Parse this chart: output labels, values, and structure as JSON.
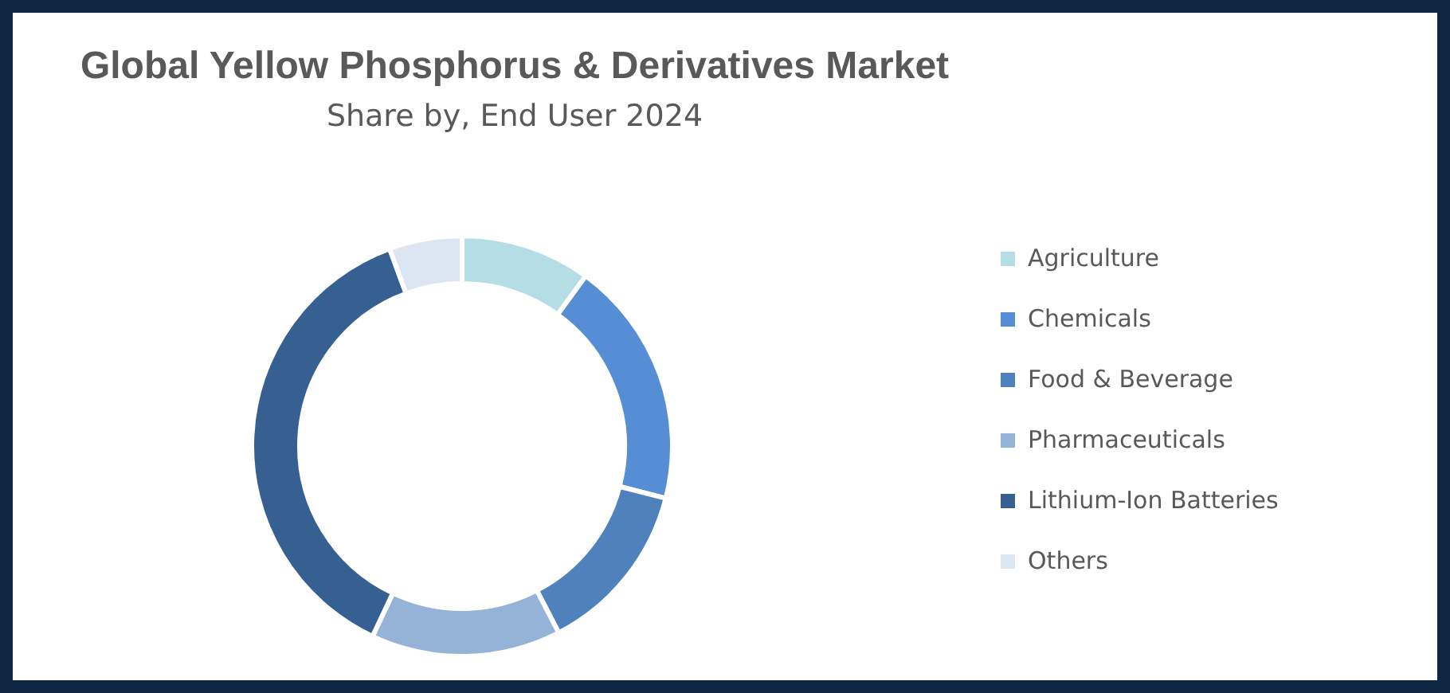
{
  "chart_data": {
    "type": "donut",
    "title": "Global Yellow Phosphorus & Derivatives Market",
    "subtitle": "Share by, End User 2024",
    "categories": [
      "Agriculture",
      "Chemicals",
      "Food & Beverage",
      "Pharmaceuticals",
      "Lithium-Ion Batteries",
      "Others"
    ],
    "values": [
      10,
      19,
      13.4,
      14.6,
      37.4,
      5.6
    ],
    "colors": [
      "#b5dde6",
      "#558ed5",
      "#4f81bd",
      "#95b3d7",
      "#376092",
      "#dce6f2"
    ],
    "legend": "right"
  }
}
